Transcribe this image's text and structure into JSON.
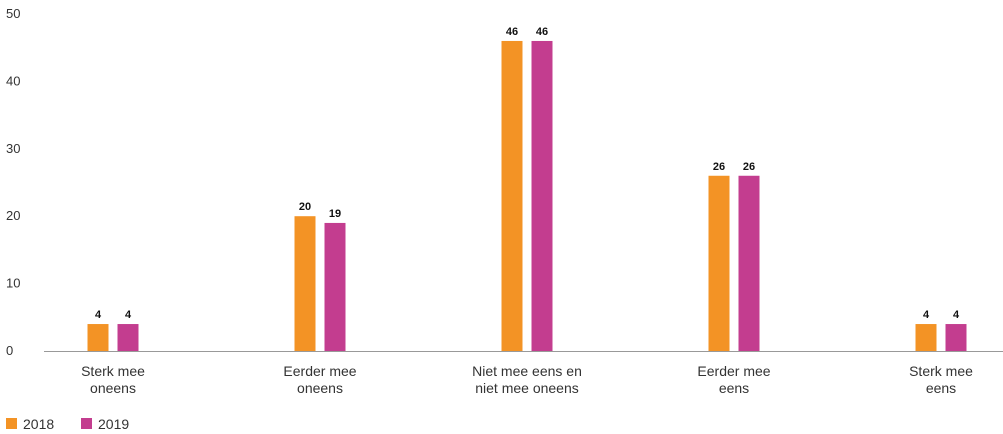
{
  "chart_data": {
    "type": "bar",
    "categories": [
      [
        "Sterk mee",
        "oneens"
      ],
      [
        "Eerder mee",
        "oneens"
      ],
      [
        "Niet mee eens en",
        "niet mee oneens"
      ],
      [
        "Eerder mee",
        "eens"
      ],
      [
        "Sterk mee",
        "eens"
      ]
    ],
    "series": [
      {
        "name": "2018",
        "values": [
          4,
          20,
          46,
          26,
          4
        ],
        "color": "#F39325"
      },
      {
        "name": "2019",
        "values": [
          4,
          19,
          46,
          26,
          4
        ],
        "color": "#C33D8F"
      }
    ],
    "ylim": [
      0,
      50
    ],
    "yticks": [
      0,
      10,
      20,
      30,
      40,
      50
    ],
    "title": "",
    "xlabel": "",
    "ylabel": "",
    "grid": false,
    "legend": "bottom-left"
  }
}
